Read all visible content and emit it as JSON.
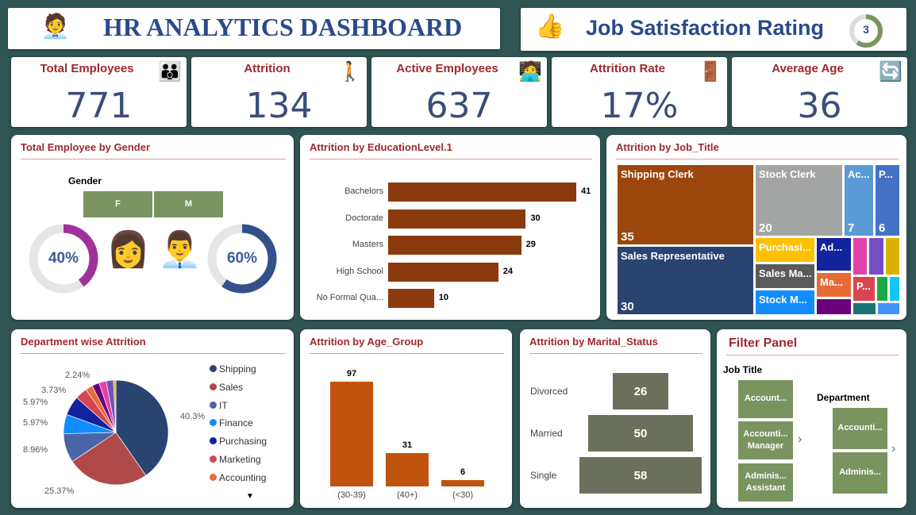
{
  "header": {
    "title": "HR ANALYTICS DASHBOARD",
    "logo_icon": "hr-desk-icon"
  },
  "satisfaction": {
    "label": "Job Satisfaction Rating",
    "value": "3",
    "icon": "thumbs-up-stars-icon"
  },
  "kpis": [
    {
      "label": "Total Employees",
      "value": "771",
      "icon": "people-icon"
    },
    {
      "label": "Attrition",
      "value": "134",
      "icon": "people-leaving-icon"
    },
    {
      "label": "Active Employees",
      "value": "637",
      "icon": "worker-desk-icon"
    },
    {
      "label": "Attrition Rate",
      "value": "17%",
      "icon": "exit-door-icon"
    },
    {
      "label": "Average Age",
      "value": "36",
      "icon": "age-icon"
    }
  ],
  "gender": {
    "title": "Total Employee by Gender",
    "slicer_label": "Gender",
    "options": [
      "F",
      "M"
    ],
    "female_pct": "40%",
    "male_pct": "60%",
    "female_value": 40,
    "male_value": 60,
    "female_color": "#a0309a",
    "male_color": "#34508a"
  },
  "education": {
    "title": "Attrition by EducationLevel.1",
    "categories": [
      "Bachelors",
      "Doctorate",
      "Masters",
      "High School",
      "No Formal Qua..."
    ],
    "values": [
      41,
      30,
      29,
      24,
      10
    ],
    "color": "#8b3a0e"
  },
  "job_title": {
    "title": "Attrition by Job_Title",
    "items": [
      {
        "name": "Shipping Clerk",
        "value": 35,
        "color": "#9a460c"
      },
      {
        "name": "Sales Representative",
        "value": 30,
        "color": "#2a4472"
      },
      {
        "name": "Stock Clerk",
        "value": 20,
        "color": "#a3a5a4"
      },
      {
        "name": "Ac...",
        "value": 7,
        "color": "#5b9bd5"
      },
      {
        "name": "P...",
        "value": 6,
        "color": "#4472c4"
      },
      {
        "name": "Purchasi...",
        "color": "#ffc000"
      },
      {
        "name": "Sales Ma...",
        "color": "#5a5a5a"
      },
      {
        "name": "Stock M...",
        "color": "#118dff"
      },
      {
        "name": "Ad...",
        "color": "#12239e"
      },
      {
        "name": "Ma...",
        "color": "#e66c37"
      },
      {
        "name": "",
        "color": "#6b007b"
      },
      {
        "name": "",
        "color": "#e044a7"
      },
      {
        "name": "",
        "color": "#744ec2"
      },
      {
        "name": "",
        "color": "#d9b300"
      },
      {
        "name": "P...",
        "color": "#d64550"
      },
      {
        "name": "",
        "color": "#1aab40"
      },
      {
        "name": "",
        "color": "#15c6f4"
      },
      {
        "name": "",
        "color": "#197278"
      },
      {
        "name": "",
        "color": "#4092ff"
      }
    ]
  },
  "department": {
    "title": "Department wise Attrition",
    "legend": [
      "Shipping",
      "Sales",
      "IT",
      "Finance",
      "Purchasing",
      "Marketing",
      "Accounting"
    ],
    "slices": [
      {
        "name": "Shipping",
        "value": 40.3,
        "label": "40.3%",
        "color": "#2a4472"
      },
      {
        "name": "Sales",
        "value": 25.37,
        "label": "25.37%",
        "color": "#b04a4a"
      },
      {
        "name": "IT",
        "value": 8.96,
        "label": "8.96%",
        "color": "#4a64a8"
      },
      {
        "name": "Finance",
        "value": 5.97,
        "label": "5.97%",
        "color": "#118dff"
      },
      {
        "name": "Purchasing",
        "value": 5.97,
        "label": "5.97%",
        "color": "#12239e"
      },
      {
        "name": "Marketing",
        "value": 3.73,
        "label": "3.73%",
        "color": "#d64550"
      },
      {
        "name": "Accounting",
        "value": 2.24,
        "label": "2.24%",
        "color": "#e66c37"
      },
      {
        "name": "",
        "value": 2.24,
        "label": "",
        "color": "#6b007b"
      },
      {
        "name": "",
        "value": 2.24,
        "label": "",
        "color": "#e044a7"
      },
      {
        "name": "",
        "value": 2.24,
        "label": "",
        "color": "#744ec2"
      },
      {
        "name": "",
        "value": 0.75,
        "label": "",
        "color": "#d9b300"
      }
    ]
  },
  "age": {
    "title": "Attrition by Age_Group",
    "categories": [
      "(30-39)",
      "(40+)",
      "(<30)"
    ],
    "values": [
      97,
      31,
      6
    ],
    "color": "#c0540e"
  },
  "marital": {
    "title": "Attrition by Marital_Status",
    "categories": [
      "Divorced",
      "Married",
      "Single"
    ],
    "values": [
      26,
      50,
      58
    ],
    "color": "#6b705c"
  },
  "filter": {
    "title": "Filter Panel",
    "job_title_label": "Job Title",
    "job_titles": [
      "Account...",
      "Accounti... Manager",
      "Adminis... Assistant"
    ],
    "department_label": "Department",
    "departments": [
      "Accounti...",
      "Adminis..."
    ]
  }
}
